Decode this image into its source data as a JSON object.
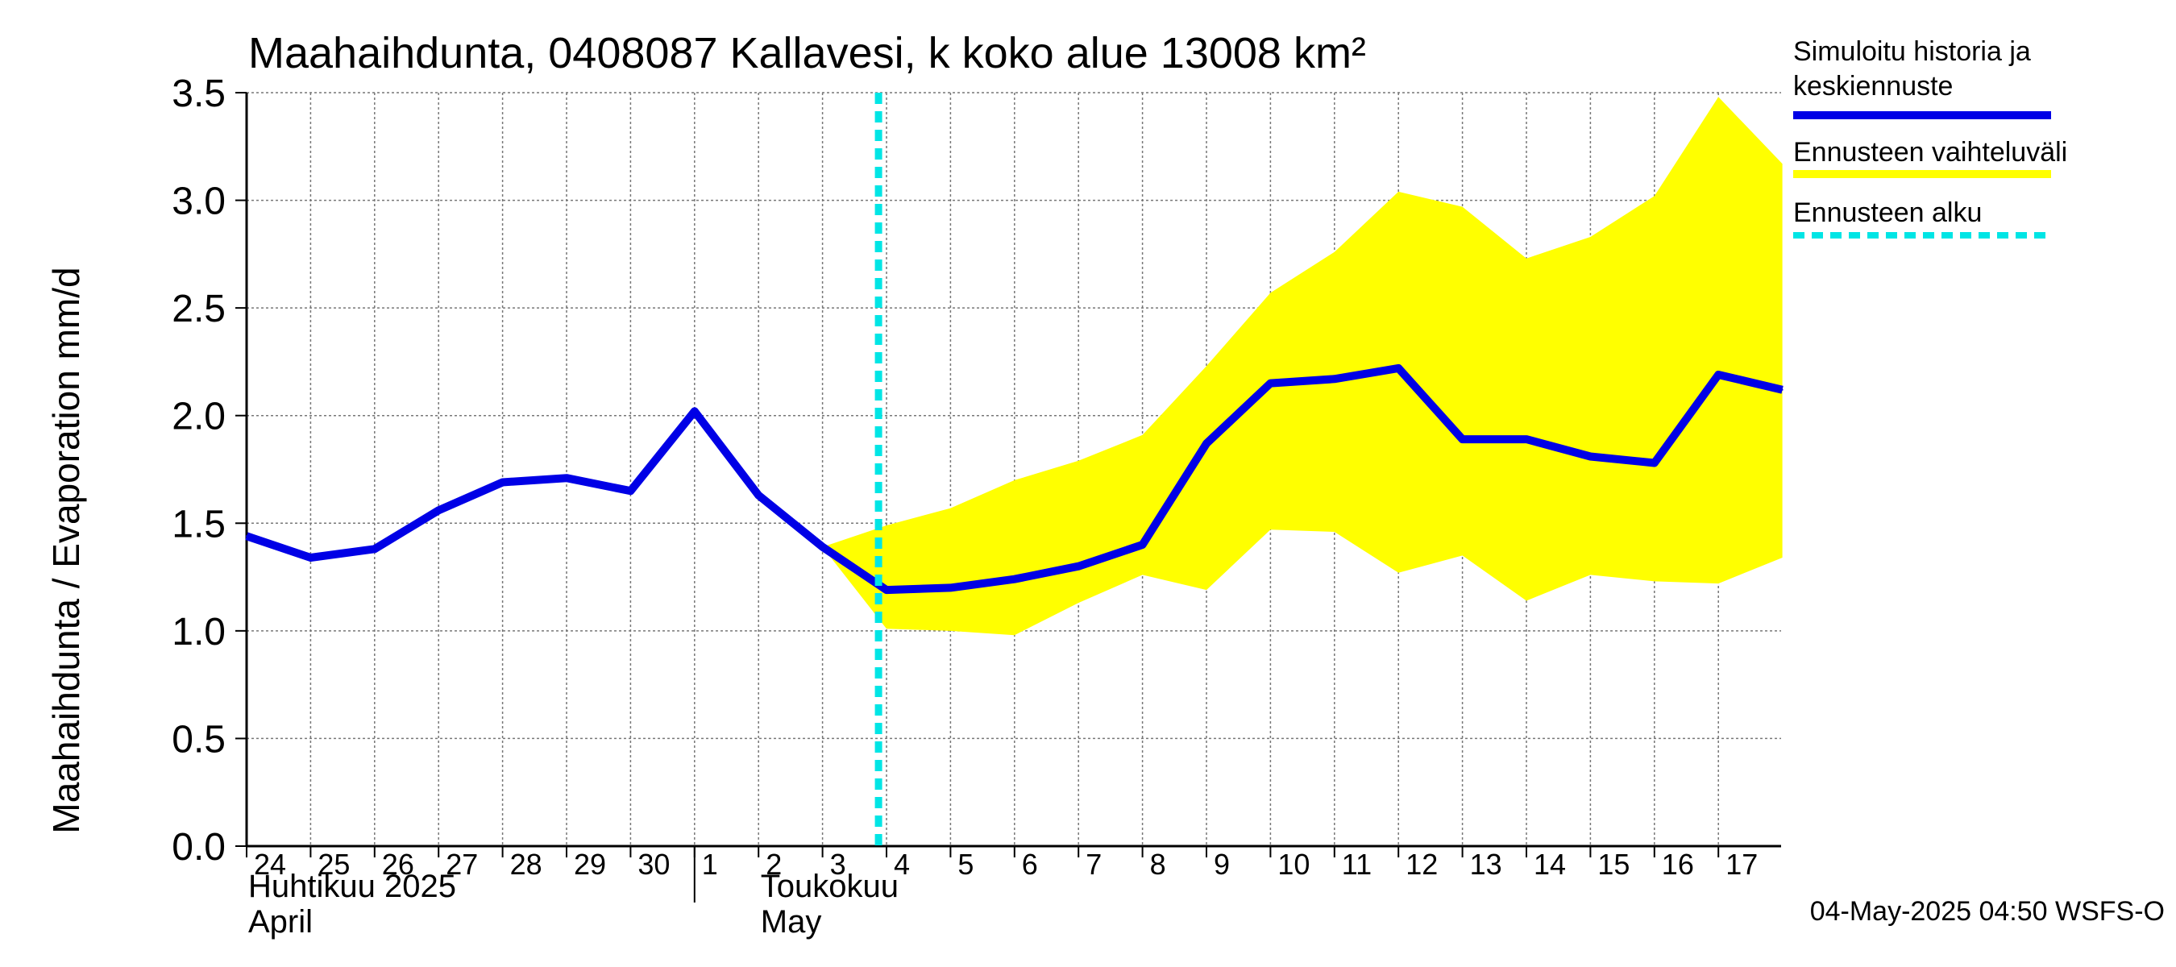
{
  "chart_data": {
    "type": "line",
    "title": "Maahaihdunta, 0408087 Kallavesi, k koko alue 13008 km²",
    "ylabel": "Maahaihdunta / Evaporation   mm/d",
    "ylim": [
      0,
      3.5
    ],
    "yticks": [
      "0.0",
      "0.5",
      "1.0",
      "1.5",
      "2.0",
      "2.5",
      "3.0",
      "3.5"
    ],
    "x_start": "2025-04-24",
    "x_end": "2025-05-17",
    "x_tick_labels": [
      "24",
      "25",
      "26",
      "27",
      "28",
      "29",
      "30",
      "1",
      "2",
      "3",
      "4",
      "5",
      "6",
      "7",
      "8",
      "9",
      "10",
      "11",
      "12",
      "13",
      "14",
      "15",
      "16",
      "17"
    ],
    "month_labels": [
      {
        "date": "2025-04-24",
        "line1": "Huhtikuu  2025",
        "line2": "April"
      },
      {
        "date": "2025-05-01",
        "line1": "Toukokuu",
        "line2": "May"
      }
    ],
    "forecast_start": "2025-05-03 21:00",
    "series": [
      {
        "name": "Simuloitu historia ja keskiennuste",
        "color": "#0000e6",
        "points": [
          [
            "2025-04-24",
            1.44
          ],
          [
            "2025-04-25",
            1.34
          ],
          [
            "2025-04-26",
            1.38
          ],
          [
            "2025-04-27",
            1.56
          ],
          [
            "2025-04-28",
            1.69
          ],
          [
            "2025-04-29",
            1.71
          ],
          [
            "2025-04-30",
            1.65
          ],
          [
            "2025-05-01",
            2.02
          ],
          [
            "2025-05-02",
            1.63
          ],
          [
            "2025-05-03",
            1.39
          ],
          [
            "2025-05-04",
            1.19
          ],
          [
            "2025-05-05",
            1.2
          ],
          [
            "2025-05-06",
            1.24
          ],
          [
            "2025-05-07",
            1.3
          ],
          [
            "2025-05-08",
            1.4
          ],
          [
            "2025-05-09",
            1.87
          ],
          [
            "2025-05-10",
            2.15
          ],
          [
            "2025-05-11",
            2.17
          ],
          [
            "2025-05-12",
            2.22
          ],
          [
            "2025-05-13",
            1.89
          ],
          [
            "2025-05-14",
            1.89
          ],
          [
            "2025-05-15",
            1.81
          ],
          [
            "2025-05-16",
            1.78
          ],
          [
            "2025-05-17",
            2.19
          ],
          [
            "2025-05-18",
            2.12
          ]
        ]
      },
      {
        "name": "Ennusteen vaihteluväli",
        "color": "#ffff00",
        "upper": [
          [
            "2025-05-03",
            1.39
          ],
          [
            "2025-05-04",
            1.49
          ],
          [
            "2025-05-05",
            1.57
          ],
          [
            "2025-05-06",
            1.7
          ],
          [
            "2025-05-07",
            1.79
          ],
          [
            "2025-05-08",
            1.91
          ],
          [
            "2025-05-09",
            2.23
          ],
          [
            "2025-05-10",
            2.57
          ],
          [
            "2025-05-11",
            2.76
          ],
          [
            "2025-05-12",
            3.04
          ],
          [
            "2025-05-13",
            2.97
          ],
          [
            "2025-05-14",
            2.73
          ],
          [
            "2025-05-15",
            2.83
          ],
          [
            "2025-05-16",
            3.02
          ],
          [
            "2025-05-17",
            3.48
          ],
          [
            "2025-05-18",
            3.17
          ]
        ],
        "lower": [
          [
            "2025-05-03",
            1.39
          ],
          [
            "2025-05-04",
            1.01
          ],
          [
            "2025-05-05",
            1.0
          ],
          [
            "2025-05-06",
            0.98
          ],
          [
            "2025-05-07",
            1.13
          ],
          [
            "2025-05-08",
            1.26
          ],
          [
            "2025-05-09",
            1.19
          ],
          [
            "2025-05-10",
            1.47
          ],
          [
            "2025-05-11",
            1.46
          ],
          [
            "2025-05-12",
            1.27
          ],
          [
            "2025-05-13",
            1.35
          ],
          [
            "2025-05-14",
            1.14
          ],
          [
            "2025-05-15",
            1.26
          ],
          [
            "2025-05-16",
            1.23
          ],
          [
            "2025-05-17",
            1.22
          ],
          [
            "2025-05-18",
            1.34
          ]
        ]
      }
    ],
    "legend": [
      {
        "label_line1": "Simuloitu historia ja",
        "label_line2": "keskiennuste",
        "color": "#0000e6",
        "style": "solid"
      },
      {
        "label_line1": "Ennusteen vaihteluväli",
        "label_line2": "",
        "color": "#ffff00",
        "style": "solid"
      },
      {
        "label_line1": "Ennusteen alku",
        "label_line2": "",
        "color": "#00e5e5",
        "style": "dashed"
      }
    ],
    "legend_position": "right",
    "grid": true,
    "footer": "04-May-2025 04:50 WSFS-O"
  }
}
